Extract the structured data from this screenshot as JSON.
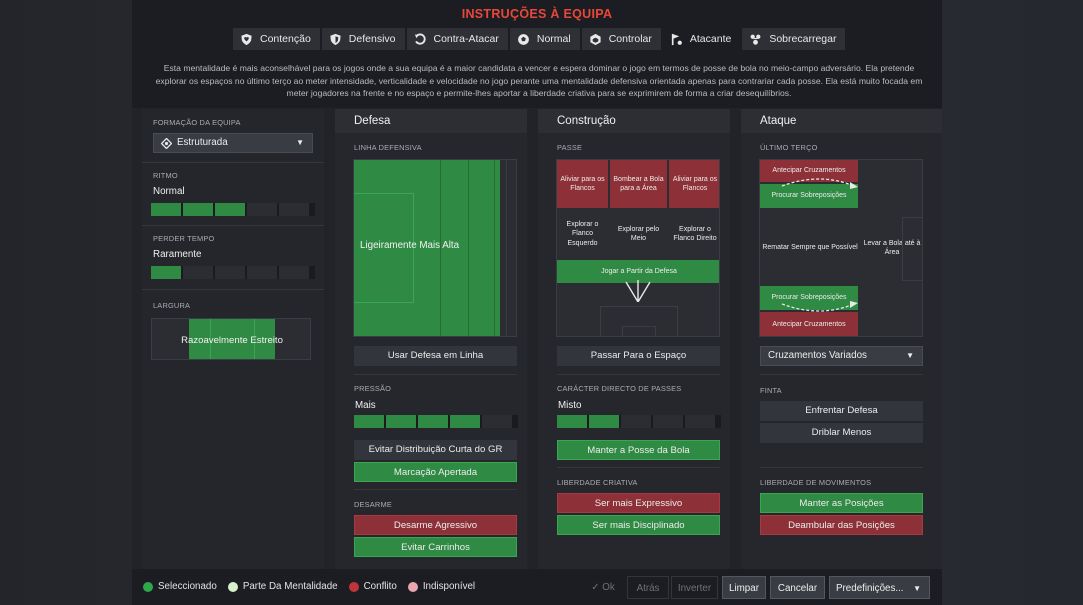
{
  "title": "INSTRUÇÕES À EQUIPA",
  "mentalities": [
    {
      "label": "Contenção",
      "icon": "shield-heart-icon",
      "active": false
    },
    {
      "label": "Defensivo",
      "icon": "shield-icon",
      "active": false
    },
    {
      "label": "Contra-Atacar",
      "icon": "counter-attack-icon",
      "active": false
    },
    {
      "label": "Normal",
      "icon": "ball-icon",
      "active": false
    },
    {
      "label": "Controlar",
      "icon": "control-icon",
      "active": false
    },
    {
      "label": "Atacante",
      "icon": "attack-flag-icon",
      "active": true
    },
    {
      "label": "Sobrecarregar",
      "icon": "overload-icon",
      "active": false
    }
  ],
  "description": "Esta mentalidade é mais aconselhável para os jogos onde a sua equipa é a maior candidata a vencer e espera dominar o jogo em termos de posse de bola no meio-campo adversário. Ela pretende explorar os espaços no último terço ao meter intensidade, verticalidade e velocidade no jogo perante uma mentalidade defensiva orientada apenas para contrariar cada posse. Ela está muito focada em meter jogadores na frente e no espaço e permite-lhes aportar a liberdade criativa para se exprimirem de forma a criar desequilíbrios.",
  "left": {
    "formation_label": "FORMAÇÃO DA EQUIPA",
    "formation_value": "Estruturada",
    "tempo_label": "RITMO",
    "tempo_value": "Normal",
    "tempo_level": 3,
    "timewasting_label": "PERDER TEMPO",
    "timewasting_value": "Raramente",
    "timewasting_level": 1,
    "width_label": "LARGURA",
    "width_value": "Razoavelmente Estreito"
  },
  "defence": {
    "heading": "Defesa",
    "line_label": "LINHA DEFENSIVA",
    "line_value": "Ligeiramente Mais Alta",
    "line_button": "Usar Defesa em Linha",
    "press_label": "PRESSÃO",
    "press_value": "Mais",
    "press_level": 4,
    "press_buttons": [
      "Evitar Distribuição Curta do GR",
      "Marcação Apertada"
    ],
    "tackle_label": "DESARME",
    "tackle_buttons": [
      "Desarme Agressivo",
      "Evitar Carrinhos"
    ]
  },
  "buildup": {
    "heading": "Construção",
    "pass_label": "PASSE",
    "cells": {
      "left_flank": "Aliviar para os Flancos",
      "long_ball": "Bombear a Bola para a Área",
      "right_flank": "Aliviar para os Flancos",
      "exploit_left": "Explorar o Flanco Esquerdo",
      "exploit_middle": "Explorar pelo Meio",
      "exploit_right": "Explorar o Flanco Direito",
      "play_out": "Jogar a Partir da Defesa"
    },
    "space_button": "Passar Para o Espaço",
    "directness_label": "CARÁCTER DIRECTO DE PASSES",
    "directness_value": "Misto",
    "directness_level": 2,
    "directness_button": "Manter a Posse da Bola",
    "creative_label": "LIBERDADE CRIATIVA",
    "creative_buttons": [
      "Ser mais Expressivo",
      "Ser mais Disciplinado"
    ]
  },
  "attack": {
    "heading": "Ataque",
    "final_third_label": "ÚLTIMO TERÇO",
    "cells": {
      "early_cross_top": "Antecipar Cruzamentos",
      "overlap_top": "Procurar Sobreposições",
      "shoot": "Rematar Sempre que Possível",
      "work_ball": "Levar a Bola até à Área",
      "overlap_bottom": "Procurar Sobreposições",
      "early_cross_bottom": "Antecipar Cruzamentos"
    },
    "cross_dropdown": "Cruzamentos Variados",
    "finish_label": "FINTA",
    "finish_buttons": [
      "Enfrentar Defesa",
      "Driblar Menos"
    ],
    "movement_label": "LIBERDADE DE MOVIMENTOS",
    "movement_buttons": [
      "Manter as Posições",
      "Deambular das Posições"
    ]
  },
  "legend": [
    {
      "label": "Seleccionado",
      "color": "#2fa84a"
    },
    {
      "label": "Parte Da Mentalidade",
      "color": "#d6f2c8"
    },
    {
      "label": "Conflito",
      "color": "#c0343c"
    },
    {
      "label": "Indisponível",
      "color": "#e8a7b0"
    }
  ],
  "footer": {
    "ok": "Ok",
    "back": "Atrás",
    "invert": "Inverter",
    "clear": "Limpar",
    "cancel": "Cancelar",
    "presets": "Predefinições..."
  }
}
